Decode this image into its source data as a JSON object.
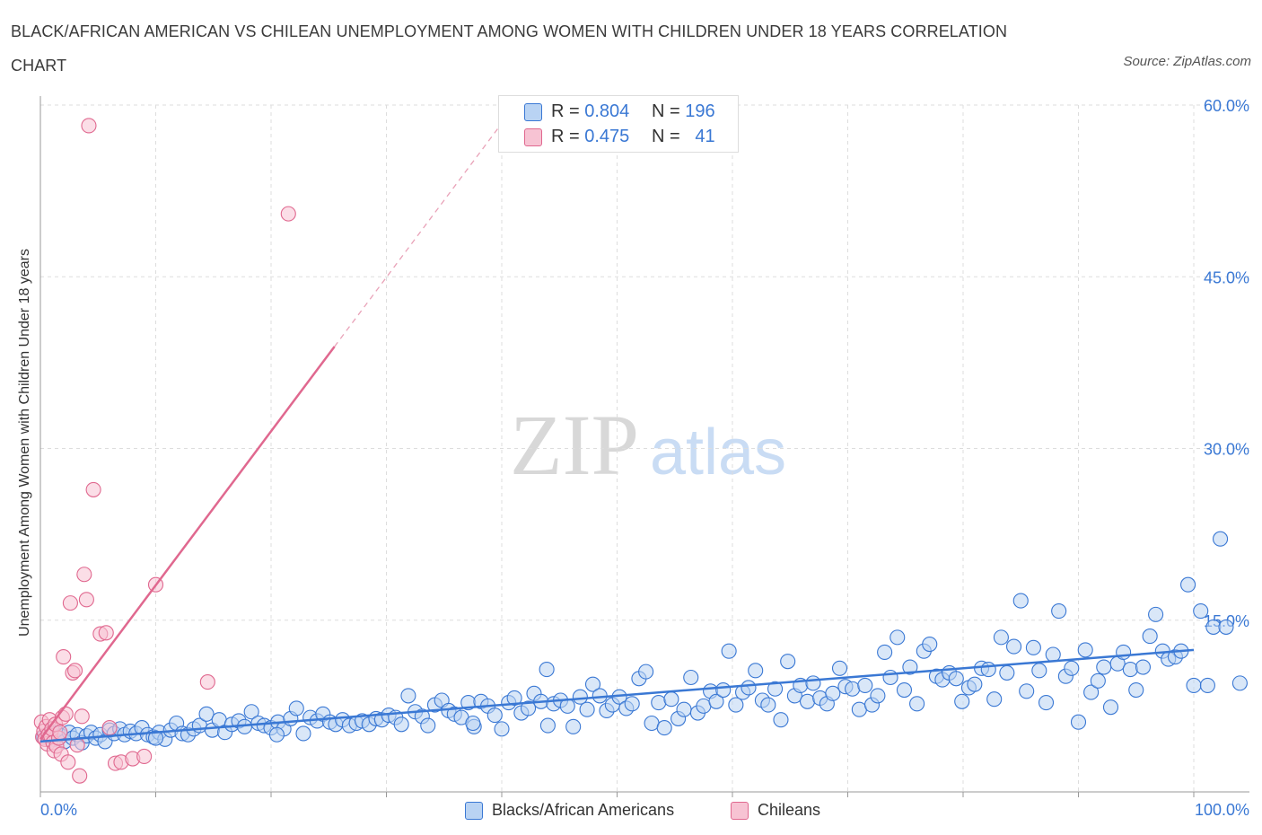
{
  "title": "BLACK/AFRICAN AMERICAN VS CHILEAN UNEMPLOYMENT AMONG WOMEN WITH CHILDREN UNDER 18 YEARS CORRELATION CHART",
  "source": "Source: ZipAtlas.com",
  "watermark": {
    "zip": "ZIP",
    "atlas": "atlas"
  },
  "colors": {
    "blue": "#3a78d4",
    "blue_fill": "#b9d3f3",
    "pink": "#e0688f",
    "pink_fill": "#f7c3d3",
    "grid": "#dddddd",
    "axis_label": "#3a78d4"
  },
  "legend_top": [
    {
      "r_label": "R =",
      "r_value": "0.804",
      "n_label": "N =",
      "n_value": "196"
    },
    {
      "r_label": "R =",
      "r_value": "0.475",
      "n_label": "N =",
      "n_value": "41"
    }
  ],
  "legend_bottom": [
    {
      "label": "Blacks/African Americans"
    },
    {
      "label": "Chileans"
    }
  ],
  "chart_data": {
    "type": "scatter",
    "title": "BLACK/AFRICAN AMERICAN VS CHILEAN UNEMPLOYMENT AMONG WOMEN WITH CHILDREN UNDER 18 YEARS CORRELATION CHART",
    "xlabel": "",
    "ylabel": "Unemployment Among Women with Children Under 18 years",
    "xlim": [
      0,
      100
    ],
    "ylim": [
      0,
      60
    ],
    "x_tick_labels": [
      "0.0%",
      "100.0%"
    ],
    "y_tick_labels": [
      "15.0%",
      "30.0%",
      "45.0%",
      "60.0%"
    ],
    "y_ticks": [
      15,
      30,
      45,
      60
    ],
    "grid": true,
    "series": [
      {
        "name": "Blacks/African Americans",
        "R": 0.804,
        "N": 196,
        "trend": {
          "x": [
            0,
            100
          ],
          "y": [
            4.4,
            12.4
          ],
          "dashed_from": null
        },
        "points": [
          [
            0.3,
            4.8
          ],
          [
            0.6,
            5.0
          ],
          [
            0.9,
            5.3
          ],
          [
            1.2,
            4.6
          ],
          [
            1.5,
            5.1
          ],
          [
            1.8,
            4.9
          ],
          [
            2.1,
            4.4
          ],
          [
            2.5,
            5.2
          ],
          [
            2.8,
            4.7
          ],
          [
            3.2,
            5.0
          ],
          [
            3.6,
            4.3
          ],
          [
            4.0,
            4.9
          ],
          [
            4.4,
            5.2
          ],
          [
            4.8,
            4.7
          ],
          [
            5.2,
            5.0
          ],
          [
            5.6,
            4.4
          ],
          [
            6.0,
            5.4
          ],
          [
            6.4,
            5.1
          ],
          [
            6.9,
            5.5
          ],
          [
            7.3,
            5.0
          ],
          [
            7.8,
            5.3
          ],
          [
            8.3,
            5.1
          ],
          [
            8.8,
            5.6
          ],
          [
            9.3,
            5.0
          ],
          [
            9.8,
            4.8
          ],
          [
            10.3,
            5.2
          ],
          [
            10.8,
            4.6
          ],
          [
            11.3,
            5.4
          ],
          [
            11.8,
            6.0
          ],
          [
            12.3,
            5.1
          ],
          [
            12.8,
            5.0
          ],
          [
            13.3,
            5.5
          ],
          [
            13.8,
            5.8
          ],
          [
            14.4,
            6.8
          ],
          [
            14.9,
            5.4
          ],
          [
            15.5,
            6.3
          ],
          [
            16.0,
            5.2
          ],
          [
            16.6,
            5.9
          ],
          [
            17.2,
            6.2
          ],
          [
            17.7,
            5.7
          ],
          [
            18.3,
            7.0
          ],
          [
            18.9,
            6.0
          ],
          [
            19.4,
            5.8
          ],
          [
            20.0,
            5.6
          ],
          [
            20.6,
            6.1
          ],
          [
            21.1,
            5.5
          ],
          [
            21.7,
            6.4
          ],
          [
            22.2,
            7.3
          ],
          [
            22.8,
            5.1
          ],
          [
            23.4,
            6.5
          ],
          [
            24.0,
            6.2
          ],
          [
            24.5,
            6.8
          ],
          [
            25.1,
            6.1
          ],
          [
            25.6,
            5.9
          ],
          [
            26.2,
            6.3
          ],
          [
            26.8,
            5.8
          ],
          [
            27.4,
            6.0
          ],
          [
            27.9,
            6.2
          ],
          [
            28.5,
            5.9
          ],
          [
            29.1,
            6.4
          ],
          [
            29.6,
            6.3
          ],
          [
            30.2,
            6.7
          ],
          [
            30.8,
            6.5
          ],
          [
            31.3,
            5.9
          ],
          [
            31.9,
            8.4
          ],
          [
            32.5,
            7.0
          ],
          [
            33.1,
            6.6
          ],
          [
            33.6,
            5.8
          ],
          [
            34.2,
            7.6
          ],
          [
            34.8,
            8.0
          ],
          [
            35.4,
            7.1
          ],
          [
            35.9,
            6.8
          ],
          [
            36.5,
            6.5
          ],
          [
            37.1,
            7.8
          ],
          [
            37.6,
            5.7
          ],
          [
            38.2,
            7.9
          ],
          [
            38.8,
            7.5
          ],
          [
            39.4,
            6.7
          ],
          [
            40.0,
            5.5
          ],
          [
            40.6,
            7.8
          ],
          [
            41.1,
            8.2
          ],
          [
            41.7,
            6.9
          ],
          [
            42.3,
            7.3
          ],
          [
            42.8,
            8.6
          ],
          [
            43.4,
            7.9
          ],
          [
            43.9,
            10.7
          ],
          [
            44.5,
            7.7
          ],
          [
            45.1,
            8.0
          ],
          [
            45.7,
            7.5
          ],
          [
            46.2,
            5.7
          ],
          [
            46.8,
            8.3
          ],
          [
            47.4,
            7.2
          ],
          [
            47.9,
            9.4
          ],
          [
            48.5,
            8.4
          ],
          [
            49.1,
            7.1
          ],
          [
            49.6,
            7.6
          ],
          [
            50.2,
            8.3
          ],
          [
            50.8,
            7.3
          ],
          [
            51.3,
            7.7
          ],
          [
            51.9,
            9.9
          ],
          [
            52.5,
            10.5
          ],
          [
            53.0,
            6.0
          ],
          [
            53.6,
            7.8
          ],
          [
            54.1,
            5.6
          ],
          [
            54.7,
            8.1
          ],
          [
            55.3,
            6.4
          ],
          [
            55.8,
            7.2
          ],
          [
            56.4,
            10.0
          ],
          [
            57.0,
            6.9
          ],
          [
            57.5,
            7.5
          ],
          [
            58.1,
            8.8
          ],
          [
            58.6,
            7.9
          ],
          [
            59.2,
            8.9
          ],
          [
            59.7,
            12.3
          ],
          [
            60.3,
            7.6
          ],
          [
            60.9,
            8.7
          ],
          [
            61.4,
            9.1
          ],
          [
            62.0,
            10.6
          ],
          [
            62.6,
            8.0
          ],
          [
            63.1,
            7.6
          ],
          [
            63.7,
            9.0
          ],
          [
            64.2,
            6.3
          ],
          [
            64.8,
            11.4
          ],
          [
            65.4,
            8.4
          ],
          [
            65.9,
            9.3
          ],
          [
            66.5,
            7.9
          ],
          [
            67.0,
            9.5
          ],
          [
            67.6,
            8.2
          ],
          [
            68.2,
            7.7
          ],
          [
            68.7,
            8.6
          ],
          [
            69.3,
            10.8
          ],
          [
            69.8,
            9.2
          ],
          [
            70.4,
            9.0
          ],
          [
            71.0,
            7.2
          ],
          [
            71.5,
            9.3
          ],
          [
            72.1,
            7.6
          ],
          [
            72.6,
            8.4
          ],
          [
            73.2,
            12.2
          ],
          [
            73.7,
            10.0
          ],
          [
            74.3,
            13.5
          ],
          [
            74.9,
            8.9
          ],
          [
            75.4,
            10.9
          ],
          [
            76.0,
            7.7
          ],
          [
            76.6,
            12.3
          ],
          [
            77.1,
            12.9
          ],
          [
            77.7,
            10.1
          ],
          [
            78.2,
            9.8
          ],
          [
            78.8,
            10.4
          ],
          [
            79.4,
            9.9
          ],
          [
            79.9,
            7.9
          ],
          [
            80.5,
            9.1
          ],
          [
            81.0,
            9.4
          ],
          [
            81.6,
            10.8
          ],
          [
            82.2,
            10.7
          ],
          [
            82.7,
            8.1
          ],
          [
            83.3,
            13.5
          ],
          [
            83.8,
            10.4
          ],
          [
            84.4,
            12.7
          ],
          [
            85.0,
            16.7
          ],
          [
            85.5,
            8.8
          ],
          [
            86.1,
            12.6
          ],
          [
            86.6,
            10.6
          ],
          [
            87.2,
            7.8
          ],
          [
            87.8,
            12.0
          ],
          [
            88.3,
            15.8
          ],
          [
            88.9,
            10.1
          ],
          [
            89.4,
            10.8
          ],
          [
            90.0,
            6.1
          ],
          [
            90.6,
            12.4
          ],
          [
            91.1,
            8.7
          ],
          [
            91.7,
            9.7
          ],
          [
            92.2,
            10.9
          ],
          [
            92.8,
            7.4
          ],
          [
            93.4,
            11.2
          ],
          [
            93.9,
            12.2
          ],
          [
            94.5,
            10.7
          ],
          [
            95.0,
            8.9
          ],
          [
            95.6,
            10.9
          ],
          [
            96.2,
            13.6
          ],
          [
            96.7,
            15.5
          ],
          [
            97.3,
            12.3
          ],
          [
            97.8,
            11.6
          ],
          [
            98.4,
            11.8
          ],
          [
            98.9,
            12.3
          ],
          [
            99.5,
            18.1
          ],
          [
            100.0,
            9.3
          ],
          [
            100.6,
            15.8
          ],
          [
            101.2,
            9.3
          ],
          [
            101.7,
            14.4
          ],
          [
            102.3,
            22.1
          ],
          [
            102.8,
            14.4
          ],
          [
            104.0,
            9.5
          ],
          [
            10.0,
            4.7
          ],
          [
            20.5,
            5.0
          ],
          [
            37.5,
            6.0
          ],
          [
            44.0,
            5.8
          ]
        ]
      },
      {
        "name": "Chileans",
        "R": 0.475,
        "N": 41,
        "trend": {
          "x": [
            0,
            25.5
          ],
          "y": [
            4.6,
            38.9
          ],
          "dashed_to": {
            "x": 40.0,
            "y": 58.4
          }
        },
        "points": [
          [
            0.1,
            6.1
          ],
          [
            0.2,
            4.8
          ],
          [
            0.3,
            5.3
          ],
          [
            0.4,
            4.6
          ],
          [
            0.5,
            5.7
          ],
          [
            0.6,
            4.2
          ],
          [
            0.7,
            5.0
          ],
          [
            0.8,
            6.3
          ],
          [
            0.9,
            4.9
          ],
          [
            1.0,
            5.5
          ],
          [
            1.1,
            4.3
          ],
          [
            1.2,
            3.6
          ],
          [
            1.3,
            5.9
          ],
          [
            1.4,
            4.0
          ],
          [
            1.6,
            4.7
          ],
          [
            1.7,
            5.2
          ],
          [
            1.8,
            3.3
          ],
          [
            1.9,
            6.5
          ],
          [
            2.0,
            11.8
          ],
          [
            2.2,
            6.8
          ],
          [
            2.4,
            2.6
          ],
          [
            2.6,
            16.5
          ],
          [
            2.8,
            10.4
          ],
          [
            3.0,
            10.6
          ],
          [
            3.2,
            4.1
          ],
          [
            3.4,
            1.4
          ],
          [
            3.6,
            6.6
          ],
          [
            3.8,
            19.0
          ],
          [
            4.0,
            16.8
          ],
          [
            4.2,
            58.2
          ],
          [
            4.6,
            26.4
          ],
          [
            5.2,
            13.8
          ],
          [
            5.7,
            13.9
          ],
          [
            6.0,
            5.6
          ],
          [
            6.5,
            2.5
          ],
          [
            7.0,
            2.6
          ],
          [
            8.0,
            2.9
          ],
          [
            9.0,
            3.1
          ],
          [
            10.0,
            18.1
          ],
          [
            14.5,
            9.6
          ],
          [
            21.5,
            50.5
          ]
        ]
      }
    ]
  }
}
